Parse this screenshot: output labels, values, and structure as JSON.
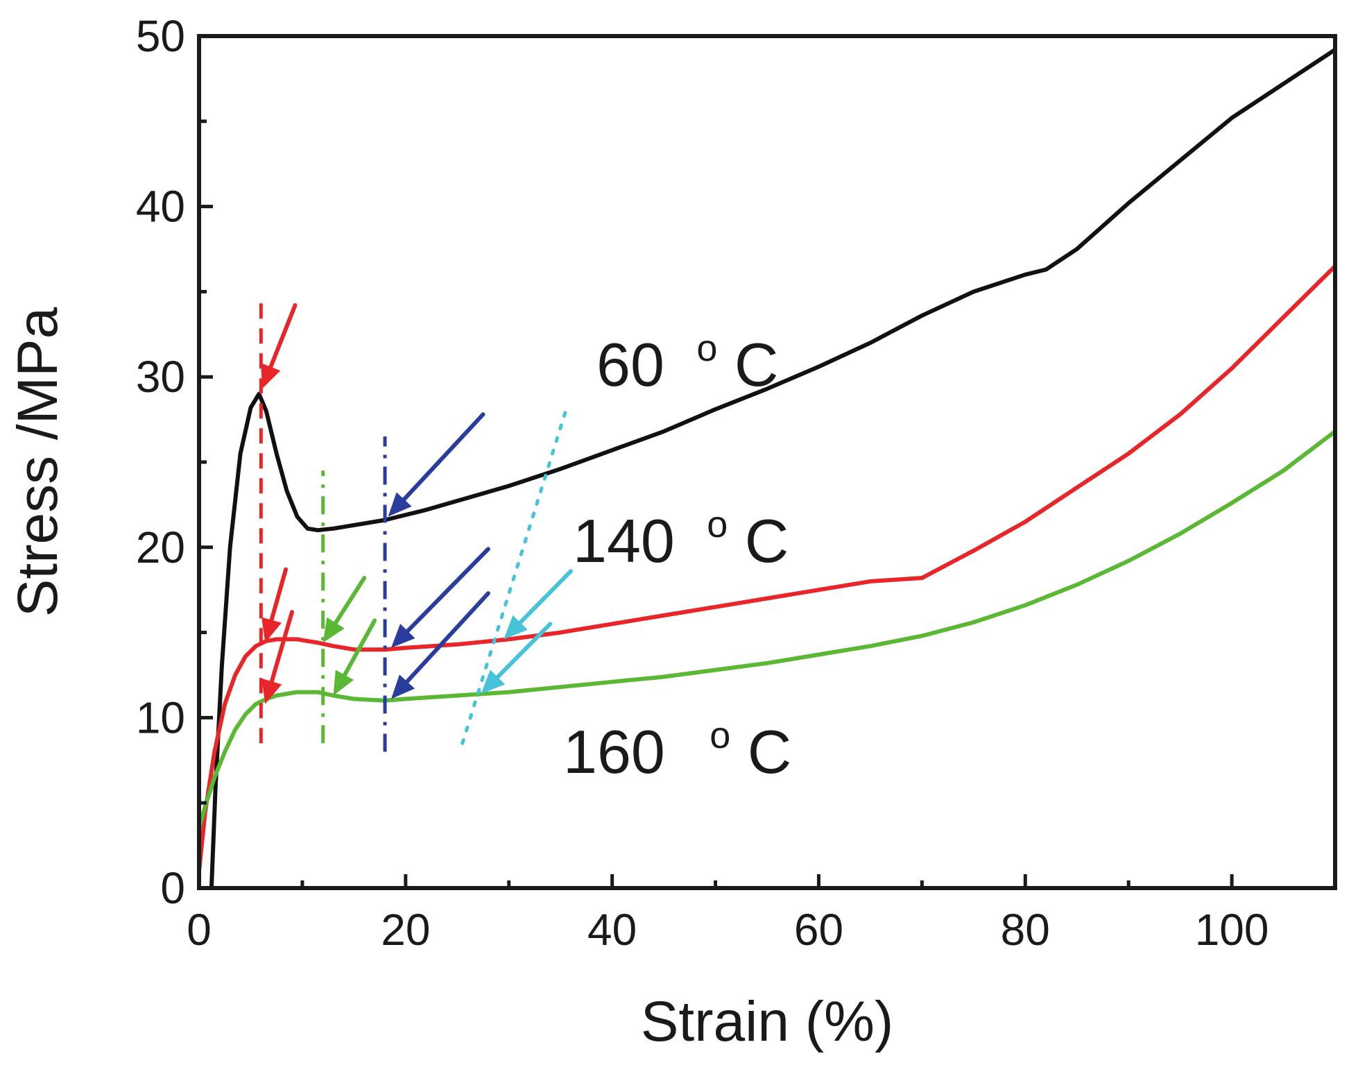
{
  "chart_data": {
    "type": "line",
    "title": "",
    "xlabel": "Strain (%)",
    "ylabel": "Stress /MPa",
    "xlim": [
      0,
      110
    ],
    "ylim": [
      0,
      50
    ],
    "x_ticks": [
      0,
      20,
      40,
      60,
      80,
      100
    ],
    "x_tick_labels": [
      "0",
      "20",
      "40",
      "60",
      "80",
      "100"
    ],
    "y_ticks": [
      0,
      10,
      20,
      30,
      40,
      50
    ],
    "y_tick_labels": [
      "0",
      "10",
      "20",
      "30",
      "40",
      "50"
    ],
    "grid": false,
    "legend": "none (inline labels)",
    "series": [
      {
        "name": "60 °C",
        "label_value": "60",
        "label_unit": "C",
        "label_degree": "o",
        "color": "#111111",
        "x": [
          1.2,
          1.6,
          2.2,
          3,
          4,
          5,
          5.8,
          6.5,
          7.5,
          8.5,
          9.5,
          10.5,
          11.5,
          13,
          15,
          18,
          22,
          26,
          30,
          35,
          40,
          45,
          50,
          55,
          60,
          65,
          70,
          75,
          80,
          82,
          85,
          90,
          95,
          100,
          105,
          110
        ],
        "y": [
          0,
          6,
          13,
          20,
          25.5,
          28.2,
          29,
          28,
          25.5,
          23.3,
          21.8,
          21.1,
          21,
          21.1,
          21.3,
          21.6,
          22.2,
          22.9,
          23.6,
          24.6,
          25.7,
          26.8,
          28.1,
          29.3,
          30.6,
          32,
          33.6,
          35,
          36,
          36.3,
          37.5,
          40.2,
          42.7,
          45.2,
          47.2,
          49.2
        ]
      },
      {
        "name": "140 °C",
        "label_value": "140",
        "label_unit": "C",
        "label_degree": "o",
        "color": "#e8262a",
        "x": [
          0,
          0.6,
          1.5,
          2.5,
          3.5,
          4.5,
          5.5,
          6.5,
          7.5,
          8.5,
          9.5,
          10.5,
          11.5,
          13,
          15,
          18,
          20,
          25,
          30,
          35,
          40,
          45,
          50,
          55,
          60,
          65,
          70,
          75,
          80,
          85,
          90,
          95,
          100,
          105,
          110
        ],
        "y": [
          1,
          4.5,
          8,
          10.8,
          12.5,
          13.6,
          14.2,
          14.5,
          14.6,
          14.6,
          14.6,
          14.5,
          14.4,
          14.2,
          14,
          14,
          14.1,
          14.3,
          14.6,
          15,
          15.5,
          16,
          16.5,
          17,
          17.5,
          18,
          18.2,
          19.8,
          21.5,
          23.5,
          25.5,
          27.8,
          30.5,
          33.5,
          36.5
        ]
      },
      {
        "name": "160 °C",
        "label_value": "160",
        "label_unit": "C",
        "label_degree": "o",
        "color": "#5ab834",
        "x": [
          0,
          0.6,
          1.5,
          2.5,
          3.5,
          4.5,
          5.5,
          6.5,
          7.5,
          8.5,
          9.5,
          10.5,
          11.5,
          13,
          15,
          18,
          20,
          25,
          30,
          35,
          40,
          45,
          50,
          55,
          60,
          65,
          70,
          75,
          80,
          85,
          90,
          95,
          100,
          105,
          110
        ],
        "y": [
          3.5,
          4.8,
          6.5,
          8,
          9.3,
          10.2,
          10.8,
          11.1,
          11.3,
          11.4,
          11.5,
          11.5,
          11.5,
          11.3,
          11.1,
          11,
          11.1,
          11.3,
          11.5,
          11.8,
          12.1,
          12.4,
          12.8,
          13.2,
          13.7,
          14.2,
          14.8,
          15.6,
          16.6,
          17.8,
          19.2,
          20.8,
          22.6,
          24.5,
          26.8
        ]
      }
    ],
    "annotations": {
      "vertical_markers": [
        {
          "name": "red-dashed-marker",
          "x": 6,
          "y_range": [
            8.5,
            34.5
          ],
          "color": "#e8262a",
          "style": "dashed"
        },
        {
          "name": "green-dashdot-marker",
          "x": 12,
          "y_range": [
            8.5,
            24.5
          ],
          "color": "#5ab834",
          "style": "dashdot"
        },
        {
          "name": "blue-dashdot-marker",
          "x": 18,
          "y_range": [
            8,
            26.5
          ],
          "color": "#2a3d9e",
          "style": "dashdot"
        },
        {
          "name": "cyan-dotted-marker",
          "x1": 25.5,
          "x2": 35.5,
          "y_range": [
            8.5,
            28
          ],
          "color": "#46c3d8",
          "style": "dotted"
        }
      ],
      "arrows": [
        {
          "name": "red-arrow-60",
          "from": [
            9.3,
            34.2
          ],
          "to": [
            6.1,
            29.3
          ],
          "color": "#e8262a"
        },
        {
          "name": "red-arrow-140",
          "from": [
            8.4,
            18.7
          ],
          "to": [
            6.4,
            14.4
          ],
          "color": "#e8262a"
        },
        {
          "name": "red-arrow-160",
          "from": [
            9,
            16.2
          ],
          "to": [
            6.4,
            10.8
          ],
          "color": "#e8262a"
        },
        {
          "name": "green-arrow-140",
          "from": [
            16,
            18.2
          ],
          "to": [
            12,
            14.4
          ],
          "color": "#5ab834"
        },
        {
          "name": "green-arrow-160",
          "from": [
            17,
            15.7
          ],
          "to": [
            13,
            11.3
          ],
          "color": "#5ab834"
        },
        {
          "name": "blue-arrow-60",
          "from": [
            27.5,
            27.8
          ],
          "to": [
            18.3,
            21.8
          ],
          "color": "#2a3d9e"
        },
        {
          "name": "blue-arrow-140",
          "from": [
            28,
            19.9
          ],
          "to": [
            18.6,
            14.1
          ],
          "color": "#2a3d9e"
        },
        {
          "name": "blue-arrow-160",
          "from": [
            28,
            17.3
          ],
          "to": [
            18.6,
            11.1
          ],
          "color": "#2a3d9e"
        },
        {
          "name": "cyan-arrow-140",
          "from": [
            36,
            18.6
          ],
          "to": [
            29.5,
            14.6
          ],
          "color": "#46c3d8"
        },
        {
          "name": "cyan-arrow-160",
          "from": [
            34,
            15.5
          ],
          "to": [
            27.3,
            11.4
          ],
          "color": "#46c3d8"
        }
      ]
    }
  }
}
